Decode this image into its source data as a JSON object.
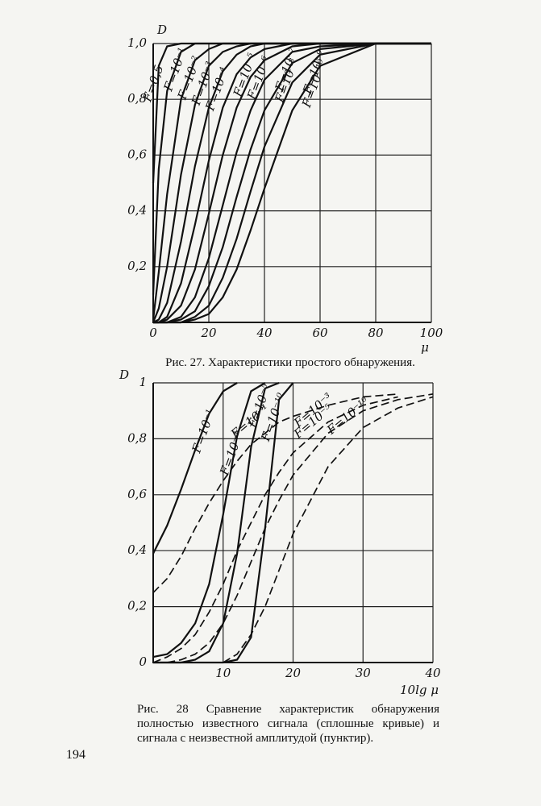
{
  "page_number": "194",
  "chart_data": [
    {
      "type": "line",
      "title": "Рис. 27. Характеристики простого обнаружения.",
      "y_label": "D",
      "x_label": "μ",
      "xlim": [
        0,
        100
      ],
      "ylim": [
        0,
        1
      ],
      "xticks": [
        0,
        20,
        40,
        60,
        80,
        100
      ],
      "yticks": [
        {
          "value": 0.2,
          "label": "0,2"
        },
        {
          "value": 0.4,
          "label": "0,4"
        },
        {
          "value": 0.6,
          "label": "0,6"
        },
        {
          "value": 0.8,
          "label": "0,8"
        },
        {
          "value": 1,
          "label": "1,0"
        }
      ],
      "grid": true,
      "color": "#111",
      "x": [
        0,
        2,
        5,
        10,
        15,
        20,
        25,
        30,
        35,
        40,
        50,
        60,
        80,
        100
      ],
      "series": [
        {
          "name": "F=0,5",
          "values": [
            0.5,
            0.92,
            0.99,
            1,
            1,
            1,
            1,
            1,
            1,
            1,
            1,
            1,
            1,
            1
          ]
        },
        {
          "name": "F=10⁻¹",
          "values": [
            0.1,
            0.55,
            0.83,
            0.97,
            1,
            1,
            1,
            1,
            1,
            1,
            1,
            1,
            1,
            1
          ]
        },
        {
          "name": "F=10⁻²",
          "values": [
            0.01,
            0.18,
            0.46,
            0.8,
            0.94,
            0.98,
            1,
            1,
            1,
            1,
            1,
            1,
            1,
            1
          ]
        },
        {
          "name": "F=10⁻³",
          "values": [
            0,
            0.05,
            0.2,
            0.53,
            0.78,
            0.92,
            0.97,
            0.99,
            1,
            1,
            1,
            1,
            1,
            1
          ]
        },
        {
          "name": "F=10⁻⁴",
          "values": [
            0,
            0.01,
            0.07,
            0.29,
            0.56,
            0.77,
            0.9,
            0.96,
            0.99,
            1,
            1,
            1,
            1,
            1
          ]
        },
        {
          "name": "F=10⁻⁵",
          "values": [
            0,
            0,
            0.02,
            0.14,
            0.35,
            0.58,
            0.77,
            0.89,
            0.95,
            0.98,
            1,
            1,
            1,
            1
          ]
        },
        {
          "name": "F=10⁻⁶",
          "values": [
            0,
            0,
            0.01,
            0.06,
            0.19,
            0.39,
            0.6,
            0.77,
            0.88,
            0.94,
            0.99,
            1,
            1,
            1
          ]
        },
        {
          "name": "F=10⁻⁷",
          "values": [
            0,
            0,
            0,
            0.02,
            0.09,
            0.23,
            0.42,
            0.61,
            0.76,
            0.87,
            0.97,
            0.99,
            1,
            1
          ]
        },
        {
          "name": "F=10⁻⁸",
          "values": [
            0,
            0,
            0,
            0.01,
            0.04,
            0.13,
            0.27,
            0.45,
            0.62,
            0.76,
            0.93,
            0.98,
            1,
            1
          ]
        },
        {
          "name": "F=10⁻⁹",
          "values": [
            0,
            0,
            0,
            0,
            0.02,
            0.06,
            0.16,
            0.3,
            0.47,
            0.63,
            0.86,
            0.96,
            1,
            1
          ]
        },
        {
          "name": "F=10⁻¹⁰",
          "values": [
            0,
            0,
            0,
            0,
            0.01,
            0.03,
            0.09,
            0.19,
            0.33,
            0.48,
            0.76,
            0.92,
            1,
            1
          ]
        }
      ]
    },
    {
      "type": "line",
      "title": "Рис. 28 Сравнение характеристик обнаружения полностью известного сигнала (сплошные кривые) и сигнала с неизвестной амплитудой (пунктир).",
      "y_label": "D",
      "x_label": "10lg μ",
      "xlim": [
        0,
        40
      ],
      "ylim": [
        0,
        1
      ],
      "xticks": [
        10,
        20,
        30,
        40
      ],
      "yticks": [
        0,
        {
          "value": 0.2,
          "label": "0,2"
        },
        {
          "value": 0.4,
          "label": "0,4"
        },
        {
          "value": 0.6,
          "label": "0,6"
        },
        {
          "value": 0.8,
          "label": "0,8"
        },
        1
      ],
      "grid": true,
      "color": "#111",
      "x": [
        0,
        2,
        4,
        6,
        8,
        10,
        12,
        14,
        16,
        18,
        20,
        25,
        30,
        35,
        40
      ],
      "series": [
        {
          "name": "F=10⁻¹",
          "dashed": false,
          "values": [
            0.39,
            0.49,
            0.62,
            0.76,
            0.89,
            0.97,
            1,
            null,
            null,
            null,
            null,
            null,
            null,
            null,
            null
          ]
        },
        {
          "name": "F=10⁻³",
          "dashed": false,
          "values": [
            0.02,
            0.03,
            0.07,
            0.14,
            0.28,
            0.53,
            0.81,
            0.97,
            1,
            null,
            null,
            null,
            null,
            null,
            null
          ]
        },
        {
          "name": "F=10⁻⁵",
          "dashed": false,
          "values": [
            0,
            0,
            0,
            0.01,
            0.04,
            0.14,
            0.39,
            0.77,
            0.98,
            1,
            null,
            null,
            null,
            null,
            null
          ]
        },
        {
          "name": "F=10⁻¹⁰",
          "dashed": false,
          "values": [
            0,
            0,
            0,
            0,
            0,
            0,
            0.01,
            0.09,
            0.48,
            0.94,
            1,
            null,
            null,
            null,
            null
          ]
        },
        {
          "name": "F=10⁻¹",
          "dashed": true,
          "values": [
            0.25,
            0.3,
            0.38,
            0.48,
            0.57,
            0.65,
            0.72,
            0.78,
            0.82,
            0.86,
            0.88,
            0.92,
            0.95,
            0.96,
            null
          ]
        },
        {
          "name": "F=10⁻³",
          "dashed": true,
          "values": [
            0,
            0.02,
            0.05,
            0.1,
            0.18,
            0.28,
            0.4,
            0.5,
            0.6,
            0.68,
            0.75,
            0.86,
            0.92,
            0.95,
            null
          ]
        },
        {
          "name": "F=10⁻⁵",
          "dashed": true,
          "values": [
            null,
            0,
            0.01,
            0.03,
            0.07,
            0.14,
            0.24,
            0.36,
            0.48,
            0.58,
            0.67,
            0.82,
            0.9,
            0.94,
            0.96
          ]
        },
        {
          "name": "F=10⁻¹⁰",
          "dashed": true,
          "values": [
            null,
            null,
            null,
            null,
            null,
            0,
            0.03,
            0.1,
            0.2,
            0.33,
            0.46,
            0.7,
            0.84,
            0.91,
            0.95
          ]
        }
      ]
    }
  ]
}
